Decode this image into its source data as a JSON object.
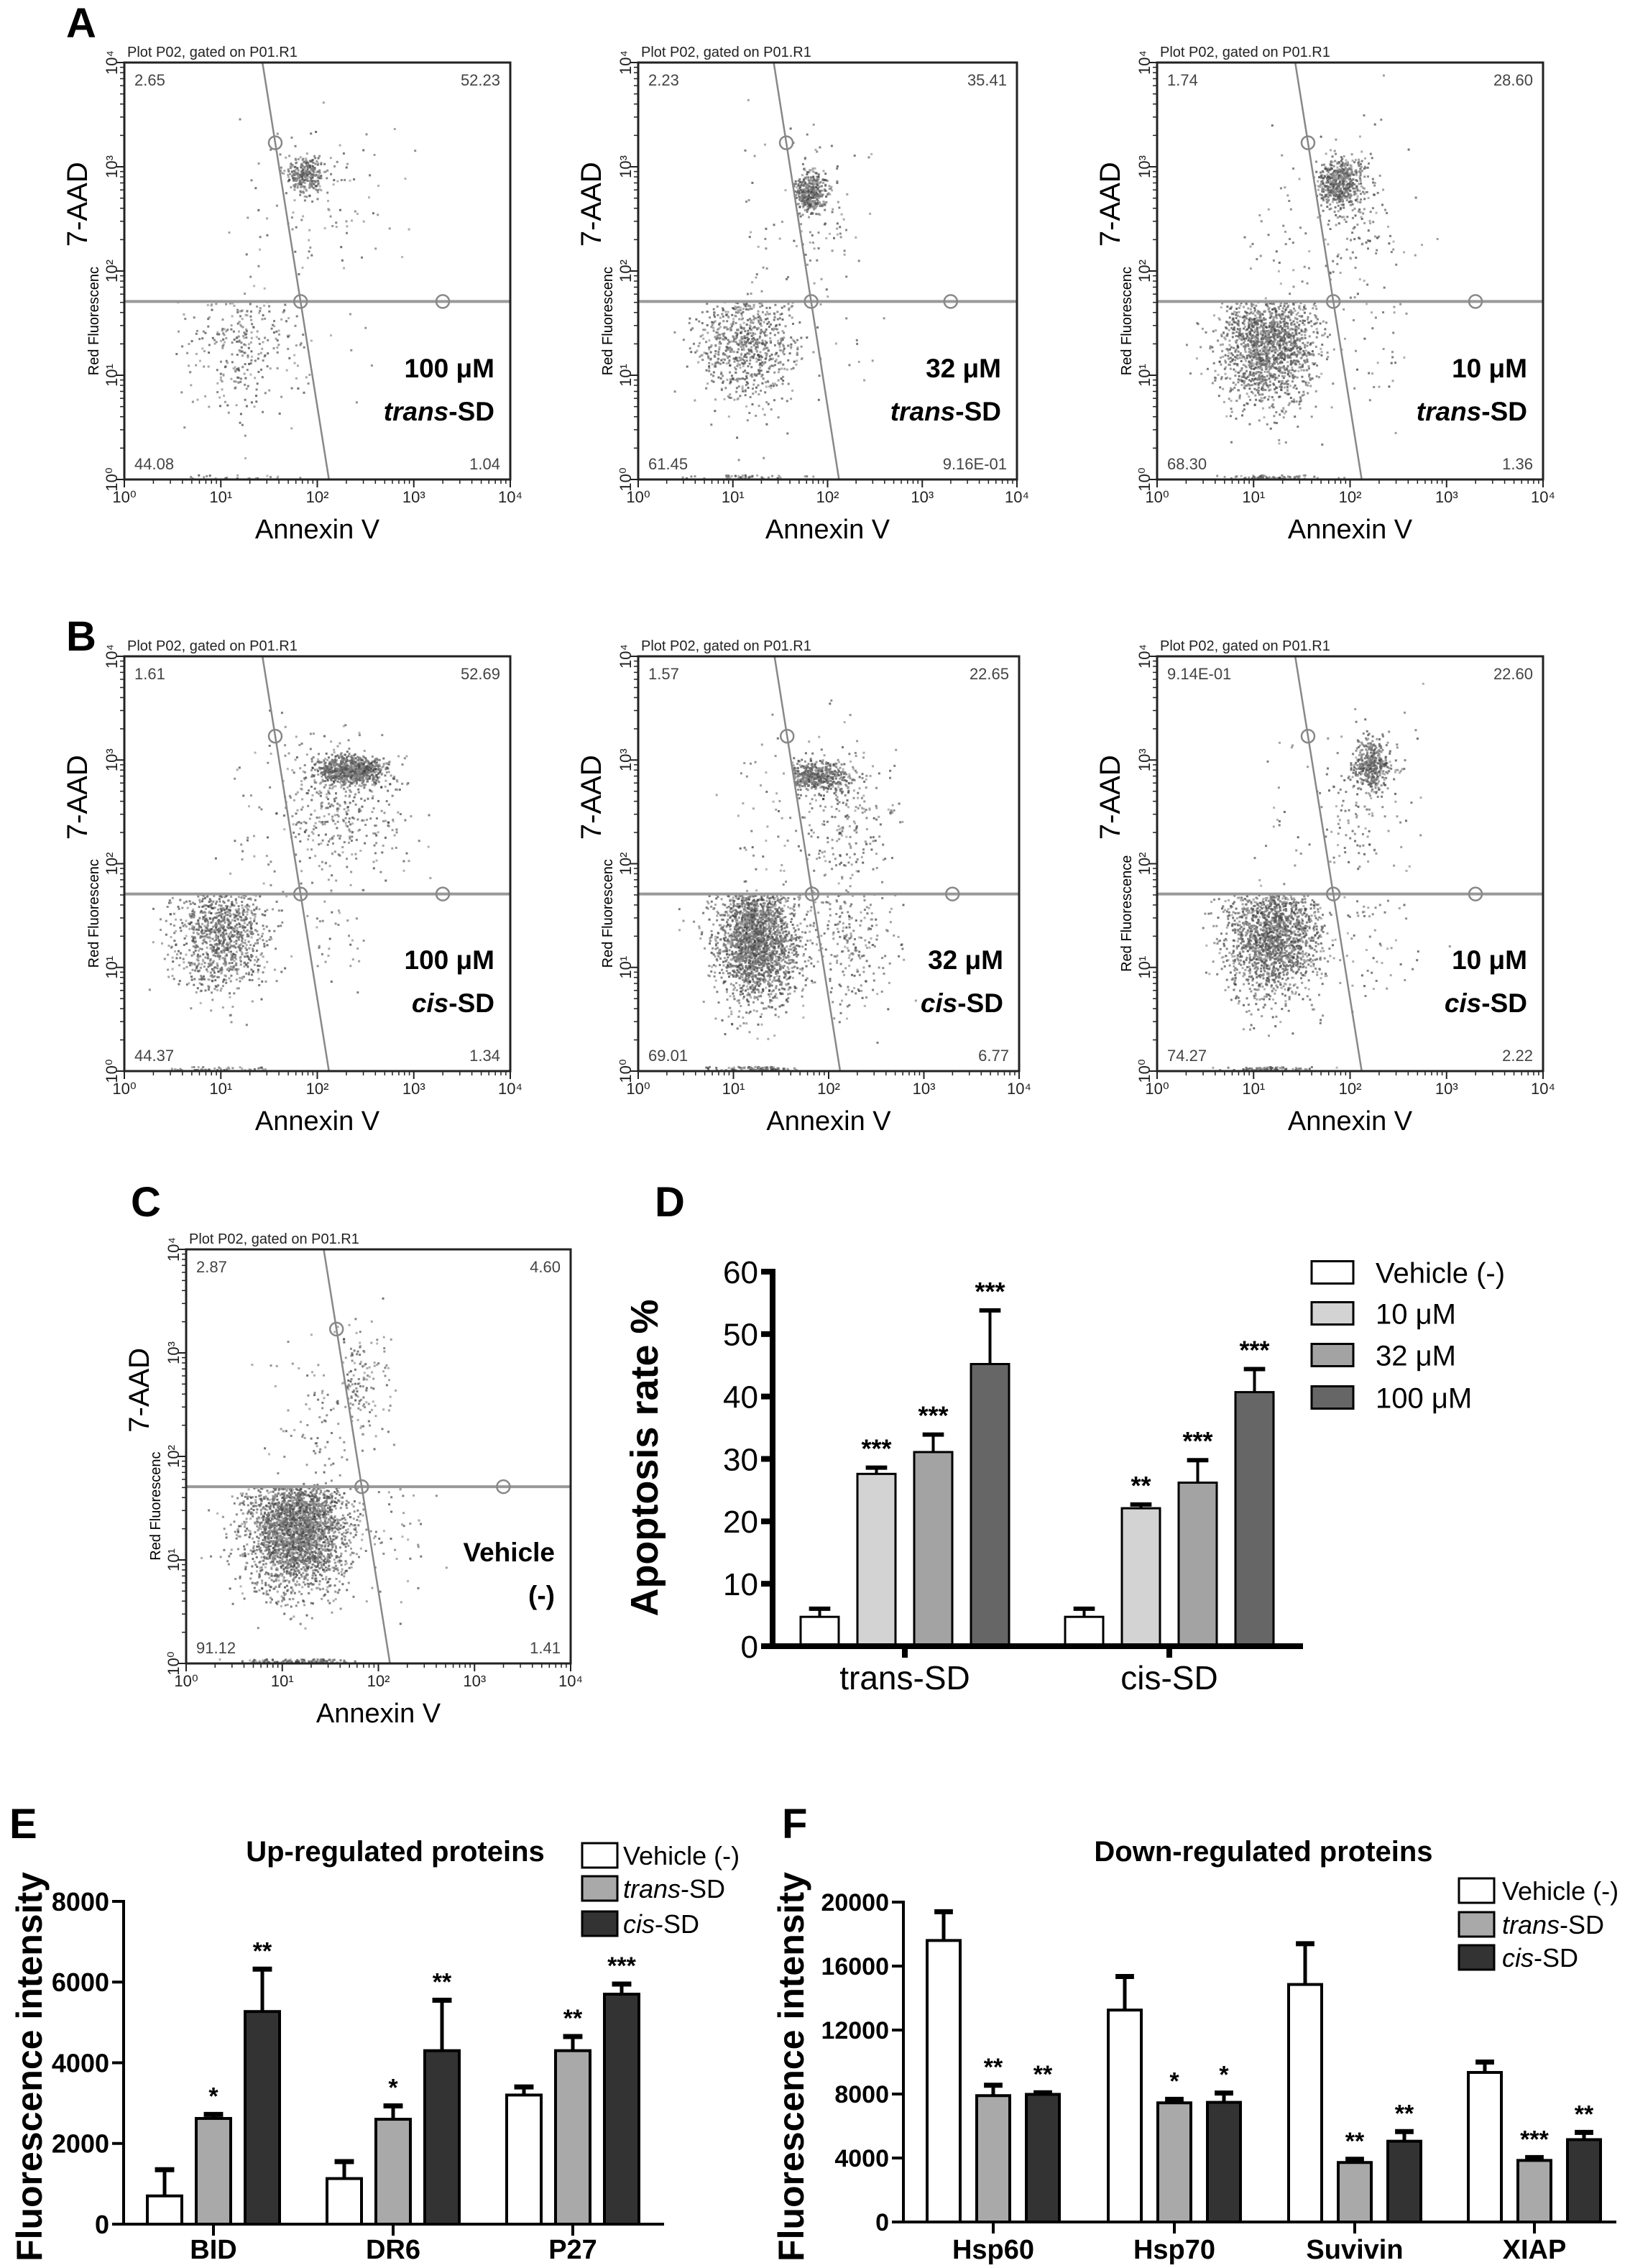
{
  "panel_letters": [
    "A",
    "B",
    "C",
    "D",
    "E",
    "F"
  ],
  "chart_data": [
    {
      "type": "scatter",
      "panel": "A",
      "plot_title": "Plot P02, gated on P01.R1",
      "xlabel": "Annexin V",
      "ylabel": "7-AAD",
      "ylabel_instrument": "Red Fluorescenc",
      "xlim": [
        1,
        10000
      ],
      "ylim": [
        1,
        10000
      ],
      "scale": "log",
      "xticks": [
        "10⁰",
        "10¹",
        "10²",
        "10³",
        "10⁴"
      ],
      "yticks": [
        "10⁰",
        "10¹",
        "10²",
        "10³",
        "10⁴"
      ],
      "gate": {
        "y": 51,
        "x_top": 27,
        "x_bottom": 132
      },
      "quadrants": {
        "UL": "2.65",
        "UR": "52.23",
        "LL": "44.08",
        "LR": "1.04"
      },
      "condition": {
        "dose": "100 μM",
        "compound_italic": "trans",
        "compound_suffix": "-SD"
      }
    },
    {
      "type": "scatter",
      "panel": "A",
      "plot_title": "Plot P02, gated on P01.R1",
      "xlabel": "Annexin V",
      "ylabel": "7-AAD",
      "ylabel_instrument": "Red Fluorescenc",
      "xlim": [
        1,
        10000
      ],
      "ylim": [
        1,
        10000
      ],
      "scale": "log",
      "xticks": [
        "10⁰",
        "10¹",
        "10²",
        "10³",
        "10⁴"
      ],
      "yticks": [
        "10⁰",
        "10¹",
        "10²",
        "10³",
        "10⁴"
      ],
      "gate": {
        "y": 51,
        "x_top": 27,
        "x_bottom": 132
      },
      "quadrants": {
        "UL": "2.23",
        "UR": "35.41",
        "LL": "61.45",
        "LR": "9.16E-01"
      },
      "condition": {
        "dose": "32 μM",
        "compound_italic": "trans",
        "compound_suffix": "-SD"
      }
    },
    {
      "type": "scatter",
      "panel": "A",
      "plot_title": "Plot P02, gated on P01.R1",
      "xlabel": "Annexin V",
      "ylabel": "7-AAD",
      "ylabel_instrument": "Red Fluorescenc",
      "xlim": [
        1,
        10000
      ],
      "ylim": [
        1,
        10000
      ],
      "scale": "log",
      "xticks": [
        "10⁰",
        "10¹",
        "10²",
        "10³",
        "10⁴"
      ],
      "yticks": [
        "10⁰",
        "10¹",
        "10²",
        "10³",
        "10⁴"
      ],
      "gate": {
        "y": 51,
        "x_top": 27,
        "x_bottom": 132
      },
      "quadrants": {
        "UL": "1.74",
        "UR": "28.60",
        "LL": "68.30",
        "LR": "1.36"
      },
      "condition": {
        "dose": "10 μM",
        "compound_italic": "trans",
        "compound_suffix": "-SD"
      }
    },
    {
      "type": "scatter",
      "panel": "B",
      "plot_title": "Plot P02, gated on P01.R1",
      "xlabel": "Annexin V",
      "ylabel": "7-AAD",
      "ylabel_instrument": "Red Fluorescenc",
      "xlim": [
        1,
        10000
      ],
      "ylim": [
        1,
        10000
      ],
      "scale": "log",
      "xticks": [
        "10⁰",
        "10¹",
        "10²",
        "10³",
        "10⁴"
      ],
      "yticks": [
        "10⁰",
        "10¹",
        "10²",
        "10³",
        "10⁴"
      ],
      "gate": {
        "y": 51,
        "x_top": 27,
        "x_bottom": 132
      },
      "quadrants": {
        "UL": "1.61",
        "UR": "52.69",
        "LL": "44.37",
        "LR": "1.34"
      },
      "condition": {
        "dose": "100 μM",
        "compound_italic": "cis",
        "compound_suffix": "-SD"
      }
    },
    {
      "type": "scatter",
      "panel": "B",
      "plot_title": "Plot P02, gated on P01.R1",
      "xlabel": "Annexin V",
      "ylabel": "7-AAD",
      "ylabel_instrument": "Red Fluorescenc",
      "xlim": [
        1,
        10000
      ],
      "ylim": [
        1,
        10000
      ],
      "scale": "log",
      "xticks": [
        "10⁰",
        "10¹",
        "10²",
        "10³",
        "10⁴"
      ],
      "yticks": [
        "10⁰",
        "10¹",
        "10²",
        "10³",
        "10⁴"
      ],
      "gate": {
        "y": 51,
        "x_top": 27,
        "x_bottom": 132
      },
      "quadrants": {
        "UL": "1.57",
        "UR": "22.65",
        "LL": "69.01",
        "LR": "6.77"
      },
      "condition": {
        "dose": "32 μM",
        "compound_italic": "cis",
        "compound_suffix": "-SD"
      }
    },
    {
      "type": "scatter",
      "panel": "B",
      "plot_title": "Plot P02, gated on P01.R1",
      "xlabel": "Annexin V",
      "ylabel": "7-AAD",
      "ylabel_instrument": "Red Fluorescence",
      "xlim": [
        1,
        10000
      ],
      "ylim": [
        1,
        10000
      ],
      "scale": "log",
      "xticks": [
        "10⁰",
        "10¹",
        "10²",
        "10³",
        "10⁴"
      ],
      "yticks": [
        "10⁰",
        "10¹",
        "10²",
        "10³",
        "10⁴"
      ],
      "gate": {
        "y": 51,
        "x_top": 27,
        "x_bottom": 132
      },
      "quadrants": {
        "UL": "9.14E-01",
        "UR": "22.60",
        "LL": "74.27",
        "LR": "2.22"
      },
      "condition": {
        "dose": "10 μM",
        "compound_italic": "cis",
        "compound_suffix": "-SD"
      }
    },
    {
      "type": "scatter",
      "panel": "C",
      "plot_title": "Plot P02, gated on P01.R1",
      "xlabel": "Annexin V",
      "ylabel": "7-AAD",
      "ylabel_instrument": "Red Fluorescenc",
      "xlim": [
        1,
        10000
      ],
      "ylim": [
        1,
        10000
      ],
      "scale": "log",
      "xticks": [
        "10⁰",
        "10¹",
        "10²",
        "10³",
        "10⁴"
      ],
      "yticks": [
        "10⁰",
        "10¹",
        "10²",
        "10³",
        "10⁴"
      ],
      "gate": {
        "y": 51,
        "x_top": 27,
        "x_bottom": 132
      },
      "quadrants": {
        "UL": "2.87",
        "UR": "4.60",
        "LL": "91.12",
        "LR": "1.41"
      },
      "condition": {
        "dose": "Vehicle",
        "compound_italic": "",
        "compound_suffix": "(-)"
      }
    },
    {
      "type": "bar",
      "panel": "D",
      "title": "",
      "xlabel": "",
      "ylabel": "Apoptosis rate %",
      "ylim": [
        0,
        60
      ],
      "yticks": [
        "0",
        "10",
        "20",
        "30",
        "40",
        "50",
        "60"
      ],
      "ytick_values": [
        0,
        10,
        20,
        30,
        40,
        50,
        60
      ],
      "categories": [
        "trans-SD",
        "cis-SD"
      ],
      "legend": "right",
      "series": [
        {
          "label_italic": "",
          "label": "Vehicle (-)",
          "color": "#ffffff",
          "values": [
            4.7,
            4.7
          ],
          "errors": [
            1.3,
            1.3
          ],
          "significance": [
            "",
            ""
          ]
        },
        {
          "label_italic": "",
          "label": "10 μM",
          "color": "#d3d3d3",
          "values": [
            27.6,
            22.1
          ],
          "errors": [
            1.0,
            0.6
          ],
          "significance": [
            "***",
            "**"
          ]
        },
        {
          "label_italic": "",
          "label": "32 μM",
          "color": "#a3a3a3",
          "values": [
            31.1,
            26.2
          ],
          "errors": [
            2.8,
            3.6
          ],
          "significance": [
            "***",
            "***"
          ]
        },
        {
          "label_italic": "",
          "label": "100 μM",
          "color": "#666666",
          "values": [
            45.2,
            40.7
          ],
          "errors": [
            8.6,
            3.7
          ],
          "significance": [
            "***",
            "***"
          ]
        }
      ]
    },
    {
      "type": "bar",
      "panel": "E",
      "title": "Up-regulated proteins",
      "xlabel": "",
      "ylabel": "Fluorescence intensity",
      "ylim": [
        0,
        8000
      ],
      "yticks": [
        "0",
        "2000",
        "4000",
        "6000",
        "8000"
      ],
      "ytick_values": [
        0,
        2000,
        4000,
        6000,
        8000
      ],
      "categories": [
        "BID",
        "DR6",
        "P27"
      ],
      "legend": "top-right",
      "series": [
        {
          "label_italic": "",
          "label": "Vehicle (-)",
          "color": "#ffffff",
          "values": [
            700,
            1130,
            3200
          ],
          "errors": [
            650,
            420,
            200
          ],
          "significance": [
            "",
            "",
            ""
          ]
        },
        {
          "label_italic": "trans",
          "label": "-SD",
          "color": "#a9a9a9",
          "values": [
            2620,
            2600,
            4300
          ],
          "errors": [
            100,
            330,
            350
          ],
          "significance": [
            "*",
            "*",
            "**"
          ]
        },
        {
          "label_italic": "cis",
          "label": "-SD",
          "color": "#333333",
          "values": [
            5270,
            4300,
            5700
          ],
          "errors": [
            1050,
            1250,
            250
          ],
          "significance": [
            "**",
            "**",
            "***"
          ]
        }
      ]
    },
    {
      "type": "bar",
      "panel": "F",
      "title": "Down-regulated proteins",
      "xlabel": "",
      "ylabel": "Fluorescence intensity",
      "ylim": [
        0,
        20000
      ],
      "yticks": [
        "0",
        "4000",
        "8000",
        "12000",
        "16000",
        "20000"
      ],
      "ytick_values": [
        0,
        4000,
        8000,
        12000,
        16000,
        20000
      ],
      "categories": [
        "Hsp60",
        "Hsp70",
        "Suvivin",
        "XIAP"
      ],
      "legend": "top-right",
      "series": [
        {
          "label_italic": "",
          "label": "Vehicle (-)",
          "color": "#ffffff",
          "values": [
            17600,
            13250,
            14850,
            9350
          ],
          "errors": [
            1800,
            2100,
            2550,
            650
          ],
          "significance": [
            "",
            "",
            "",
            ""
          ]
        },
        {
          "label_italic": "trans",
          "label": "-SD",
          "color": "#a9a9a9",
          "values": [
            7900,
            7450,
            3720,
            3850
          ],
          "errors": [
            650,
            220,
            200,
            180
          ],
          "significance": [
            "**",
            "*",
            "**",
            "***"
          ]
        },
        {
          "label_italic": "cis",
          "label": "-SD",
          "color": "#333333",
          "values": [
            7980,
            7480,
            5050,
            5150
          ],
          "errors": [
            100,
            580,
            600,
            450
          ],
          "significance": [
            "**",
            "*",
            "**",
            "**"
          ]
        }
      ]
    }
  ]
}
